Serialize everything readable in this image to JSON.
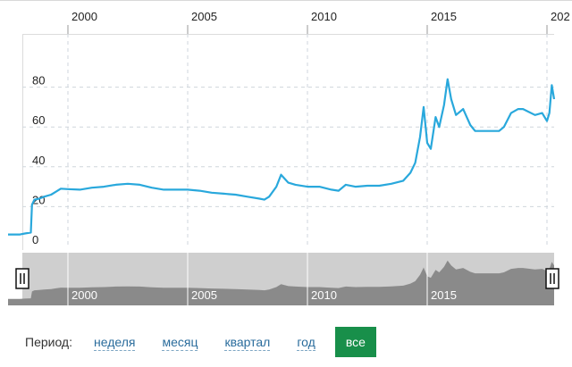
{
  "chart_data": {
    "type": "line",
    "x_ticks": [
      "2000",
      "2005",
      "2010",
      "2015",
      "202"
    ],
    "y_ticks": [
      "0",
      "20",
      "40",
      "60",
      "80"
    ],
    "ylim": [
      0,
      100
    ],
    "series": [
      {
        "color": "#29a8dc",
        "points": [
          [
            1997.5,
            6
          ],
          [
            1997.6,
            6
          ],
          [
            1998.0,
            6
          ],
          [
            1998.2,
            6.5
          ],
          [
            1998.45,
            7
          ],
          [
            1998.5,
            21
          ],
          [
            1998.6,
            23.5
          ],
          [
            1998.8,
            24
          ],
          [
            1999.0,
            25
          ],
          [
            1999.3,
            26
          ],
          [
            1999.5,
            27.5
          ],
          [
            1999.7,
            29
          ],
          [
            2000.0,
            28.8
          ],
          [
            2000.5,
            28.5
          ],
          [
            2001.0,
            29.5
          ],
          [
            2001.5,
            30
          ],
          [
            2002.0,
            31
          ],
          [
            2002.5,
            31.5
          ],
          [
            2003.0,
            31
          ],
          [
            2003.5,
            29.5
          ],
          [
            2004.0,
            28.5
          ],
          [
            2004.5,
            28.5
          ],
          [
            2005.0,
            28.5
          ],
          [
            2005.5,
            28
          ],
          [
            2006.0,
            27
          ],
          [
            2006.5,
            26.5
          ],
          [
            2007.0,
            26
          ],
          [
            2007.5,
            25
          ],
          [
            2008.0,
            24
          ],
          [
            2008.2,
            23.5
          ],
          [
            2008.4,
            25
          ],
          [
            2008.7,
            30
          ],
          [
            2008.9,
            36
          ],
          [
            2009.2,
            32
          ],
          [
            2009.5,
            31
          ],
          [
            2010.0,
            30
          ],
          [
            2010.5,
            30
          ],
          [
            2011.0,
            28.5
          ],
          [
            2011.3,
            28
          ],
          [
            2011.6,
            31
          ],
          [
            2012.0,
            30
          ],
          [
            2012.5,
            30.5
          ],
          [
            2013.0,
            30.5
          ],
          [
            2013.5,
            31.5
          ],
          [
            2014.0,
            33
          ],
          [
            2014.3,
            37
          ],
          [
            2014.5,
            42
          ],
          [
            2014.7,
            55
          ],
          [
            2014.85,
            70
          ],
          [
            2015.0,
            52
          ],
          [
            2015.15,
            49
          ],
          [
            2015.35,
            65
          ],
          [
            2015.5,
            60
          ],
          [
            2015.7,
            71
          ],
          [
            2015.85,
            84
          ],
          [
            2016.0,
            74
          ],
          [
            2016.2,
            66
          ],
          [
            2016.5,
            69
          ],
          [
            2016.8,
            61
          ],
          [
            2017.0,
            58
          ],
          [
            2017.5,
            58
          ],
          [
            2018.0,
            58
          ],
          [
            2018.2,
            60
          ],
          [
            2018.5,
            67
          ],
          [
            2018.8,
            69
          ],
          [
            2019.0,
            69
          ],
          [
            2019.5,
            66
          ],
          [
            2019.8,
            67
          ],
          [
            2020.0,
            63
          ],
          [
            2020.1,
            67
          ],
          [
            2020.2,
            81
          ],
          [
            2020.3,
            74
          ]
        ]
      }
    ]
  },
  "navigator": {
    "x_ticks": [
      "2000",
      "2005",
      "2010",
      "2015"
    ],
    "left_handle_icon": "drag-handle-icon",
    "right_handle_icon": "drag-handle-icon"
  },
  "period": {
    "label": "Период:",
    "options": [
      "неделя",
      "месяц",
      "квартал",
      "год",
      "все"
    ],
    "active": "все",
    "active_color": "#188f4a"
  }
}
